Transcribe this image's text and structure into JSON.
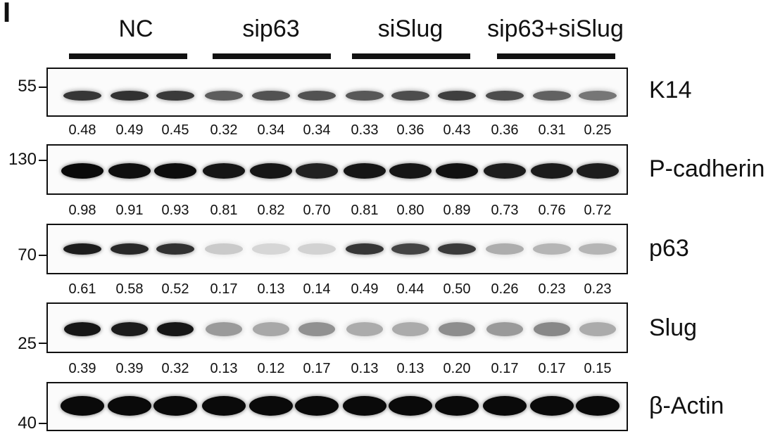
{
  "panel_letter": "I",
  "groups": [
    {
      "label": "NC"
    },
    {
      "label": "sip63"
    },
    {
      "label": "siSlug"
    },
    {
      "label": "sip63+siSlug"
    }
  ],
  "blots": [
    {
      "protein": "K14",
      "marker": "55",
      "values": [
        "0.48",
        "0.49",
        "0.45",
        "0.32",
        "0.34",
        "0.34",
        "0.33",
        "0.36",
        "0.43",
        "0.36",
        "0.31",
        "0.25"
      ],
      "intensity": [
        0.82,
        0.84,
        0.8,
        0.66,
        0.7,
        0.7,
        0.68,
        0.72,
        0.78,
        0.72,
        0.64,
        0.55
      ]
    },
    {
      "protein": "P-cadherin",
      "marker": "130",
      "values": [
        "0.98",
        "0.91",
        "0.93",
        "0.81",
        "0.82",
        "0.70",
        "0.81",
        "0.80",
        "0.89",
        "0.73",
        "0.76",
        "0.72"
      ],
      "intensity": [
        1.0,
        0.98,
        0.99,
        0.95,
        0.95,
        0.9,
        0.95,
        0.95,
        0.97,
        0.92,
        0.93,
        0.92
      ]
    },
    {
      "protein": "p63",
      "marker": "70",
      "values": [
        "0.61",
        "0.58",
        "0.52",
        "0.17",
        "0.13",
        "0.14",
        "0.49",
        "0.44",
        "0.50",
        "0.26",
        "0.23",
        "0.23"
      ],
      "intensity": [
        0.92,
        0.88,
        0.84,
        0.2,
        0.15,
        0.17,
        0.82,
        0.76,
        0.8,
        0.32,
        0.29,
        0.29
      ]
    },
    {
      "protein": "Slug",
      "marker": "25",
      "values": [
        "0.39",
        "0.39",
        "0.32",
        "0.13",
        "0.12",
        "0.17",
        "0.13",
        "0.13",
        "0.20",
        "0.17",
        "0.17",
        "0.15"
      ],
      "intensity": [
        0.95,
        0.93,
        0.95,
        0.4,
        0.34,
        0.44,
        0.33,
        0.33,
        0.46,
        0.4,
        0.48,
        0.33
      ]
    },
    {
      "protein": "β-Actin",
      "marker": "40",
      "values": [],
      "intensity": [
        1.0,
        1.0,
        1.0,
        1.0,
        1.0,
        1.0,
        1.0,
        1.0,
        1.0,
        1.0,
        1.0,
        1.0
      ]
    }
  ]
}
